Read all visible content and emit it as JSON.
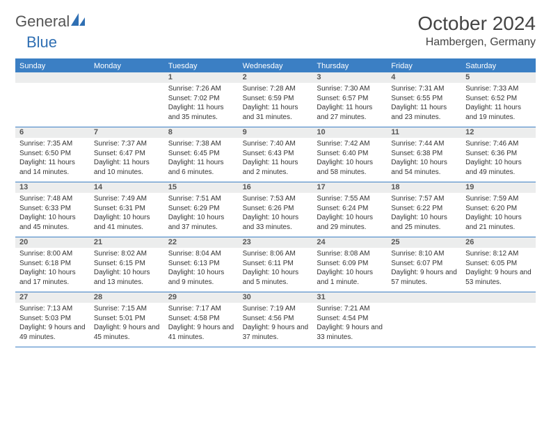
{
  "brand": {
    "name1": "General",
    "name2": "Blue"
  },
  "title": "October 2024",
  "location": "Hambergen, Germany",
  "colors": {
    "header_bg": "#3b7fc4",
    "header_text": "#ffffff",
    "row_border": "#3b7fc4",
    "numbar_bg": "#eceded",
    "text": "#333333",
    "logo_gray": "#555555",
    "logo_blue": "#2f6fb3"
  },
  "day_names": [
    "Sunday",
    "Monday",
    "Tuesday",
    "Wednesday",
    "Thursday",
    "Friday",
    "Saturday"
  ],
  "weeks": [
    [
      {
        "n": "",
        "sr": "",
        "ss": "",
        "dl": ""
      },
      {
        "n": "",
        "sr": "",
        "ss": "",
        "dl": ""
      },
      {
        "n": "1",
        "sr": "Sunrise: 7:26 AM",
        "ss": "Sunset: 7:02 PM",
        "dl": "Daylight: 11 hours and 35 minutes."
      },
      {
        "n": "2",
        "sr": "Sunrise: 7:28 AM",
        "ss": "Sunset: 6:59 PM",
        "dl": "Daylight: 11 hours and 31 minutes."
      },
      {
        "n": "3",
        "sr": "Sunrise: 7:30 AM",
        "ss": "Sunset: 6:57 PM",
        "dl": "Daylight: 11 hours and 27 minutes."
      },
      {
        "n": "4",
        "sr": "Sunrise: 7:31 AM",
        "ss": "Sunset: 6:55 PM",
        "dl": "Daylight: 11 hours and 23 minutes."
      },
      {
        "n": "5",
        "sr": "Sunrise: 7:33 AM",
        "ss": "Sunset: 6:52 PM",
        "dl": "Daylight: 11 hours and 19 minutes."
      }
    ],
    [
      {
        "n": "6",
        "sr": "Sunrise: 7:35 AM",
        "ss": "Sunset: 6:50 PM",
        "dl": "Daylight: 11 hours and 14 minutes."
      },
      {
        "n": "7",
        "sr": "Sunrise: 7:37 AM",
        "ss": "Sunset: 6:47 PM",
        "dl": "Daylight: 11 hours and 10 minutes."
      },
      {
        "n": "8",
        "sr": "Sunrise: 7:38 AM",
        "ss": "Sunset: 6:45 PM",
        "dl": "Daylight: 11 hours and 6 minutes."
      },
      {
        "n": "9",
        "sr": "Sunrise: 7:40 AM",
        "ss": "Sunset: 6:43 PM",
        "dl": "Daylight: 11 hours and 2 minutes."
      },
      {
        "n": "10",
        "sr": "Sunrise: 7:42 AM",
        "ss": "Sunset: 6:40 PM",
        "dl": "Daylight: 10 hours and 58 minutes."
      },
      {
        "n": "11",
        "sr": "Sunrise: 7:44 AM",
        "ss": "Sunset: 6:38 PM",
        "dl": "Daylight: 10 hours and 54 minutes."
      },
      {
        "n": "12",
        "sr": "Sunrise: 7:46 AM",
        "ss": "Sunset: 6:36 PM",
        "dl": "Daylight: 10 hours and 49 minutes."
      }
    ],
    [
      {
        "n": "13",
        "sr": "Sunrise: 7:48 AM",
        "ss": "Sunset: 6:33 PM",
        "dl": "Daylight: 10 hours and 45 minutes."
      },
      {
        "n": "14",
        "sr": "Sunrise: 7:49 AM",
        "ss": "Sunset: 6:31 PM",
        "dl": "Daylight: 10 hours and 41 minutes."
      },
      {
        "n": "15",
        "sr": "Sunrise: 7:51 AM",
        "ss": "Sunset: 6:29 PM",
        "dl": "Daylight: 10 hours and 37 minutes."
      },
      {
        "n": "16",
        "sr": "Sunrise: 7:53 AM",
        "ss": "Sunset: 6:26 PM",
        "dl": "Daylight: 10 hours and 33 minutes."
      },
      {
        "n": "17",
        "sr": "Sunrise: 7:55 AM",
        "ss": "Sunset: 6:24 PM",
        "dl": "Daylight: 10 hours and 29 minutes."
      },
      {
        "n": "18",
        "sr": "Sunrise: 7:57 AM",
        "ss": "Sunset: 6:22 PM",
        "dl": "Daylight: 10 hours and 25 minutes."
      },
      {
        "n": "19",
        "sr": "Sunrise: 7:59 AM",
        "ss": "Sunset: 6:20 PM",
        "dl": "Daylight: 10 hours and 21 minutes."
      }
    ],
    [
      {
        "n": "20",
        "sr": "Sunrise: 8:00 AM",
        "ss": "Sunset: 6:18 PM",
        "dl": "Daylight: 10 hours and 17 minutes."
      },
      {
        "n": "21",
        "sr": "Sunrise: 8:02 AM",
        "ss": "Sunset: 6:15 PM",
        "dl": "Daylight: 10 hours and 13 minutes."
      },
      {
        "n": "22",
        "sr": "Sunrise: 8:04 AM",
        "ss": "Sunset: 6:13 PM",
        "dl": "Daylight: 10 hours and 9 minutes."
      },
      {
        "n": "23",
        "sr": "Sunrise: 8:06 AM",
        "ss": "Sunset: 6:11 PM",
        "dl": "Daylight: 10 hours and 5 minutes."
      },
      {
        "n": "24",
        "sr": "Sunrise: 8:08 AM",
        "ss": "Sunset: 6:09 PM",
        "dl": "Daylight: 10 hours and 1 minute."
      },
      {
        "n": "25",
        "sr": "Sunrise: 8:10 AM",
        "ss": "Sunset: 6:07 PM",
        "dl": "Daylight: 9 hours and 57 minutes."
      },
      {
        "n": "26",
        "sr": "Sunrise: 8:12 AM",
        "ss": "Sunset: 6:05 PM",
        "dl": "Daylight: 9 hours and 53 minutes."
      }
    ],
    [
      {
        "n": "27",
        "sr": "Sunrise: 7:13 AM",
        "ss": "Sunset: 5:03 PM",
        "dl": "Daylight: 9 hours and 49 minutes."
      },
      {
        "n": "28",
        "sr": "Sunrise: 7:15 AM",
        "ss": "Sunset: 5:01 PM",
        "dl": "Daylight: 9 hours and 45 minutes."
      },
      {
        "n": "29",
        "sr": "Sunrise: 7:17 AM",
        "ss": "Sunset: 4:58 PM",
        "dl": "Daylight: 9 hours and 41 minutes."
      },
      {
        "n": "30",
        "sr": "Sunrise: 7:19 AM",
        "ss": "Sunset: 4:56 PM",
        "dl": "Daylight: 9 hours and 37 minutes."
      },
      {
        "n": "31",
        "sr": "Sunrise: 7:21 AM",
        "ss": "Sunset: 4:54 PM",
        "dl": "Daylight: 9 hours and 33 minutes."
      },
      {
        "n": "",
        "sr": "",
        "ss": "",
        "dl": ""
      },
      {
        "n": "",
        "sr": "",
        "ss": "",
        "dl": ""
      }
    ]
  ]
}
